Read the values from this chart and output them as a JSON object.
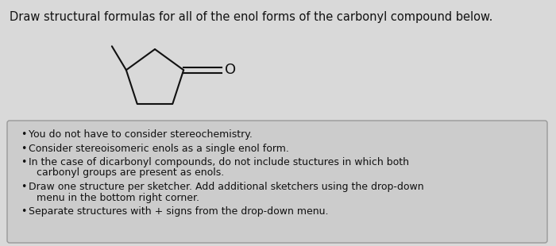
{
  "title": "Draw structural formulas for all of the enol forms of the carbonyl compound below.",
  "title_fontsize": 10.5,
  "bg_color": "#d9d9d9",
  "box_bg_color": "#cccccc",
  "box_border_color": "#999999",
  "text_color": "#111111",
  "bullet_points": [
    "You do not have to consider stereochemistry.",
    "Consider stereoisomeric enols as a single enol form.",
    "In the case of dicarbonyl compounds, do not include stuctures in which both\ncarbonyl groups are present as enols.",
    "Draw one structure per sketcher. Add additional sketchers using the drop-down\nmenu in the bottom right corner.",
    "Separate structures with + signs from the drop-down menu."
  ],
  "bullet_fontsize": 9.0,
  "ring_color": "#111111",
  "ring_lw": 1.5
}
